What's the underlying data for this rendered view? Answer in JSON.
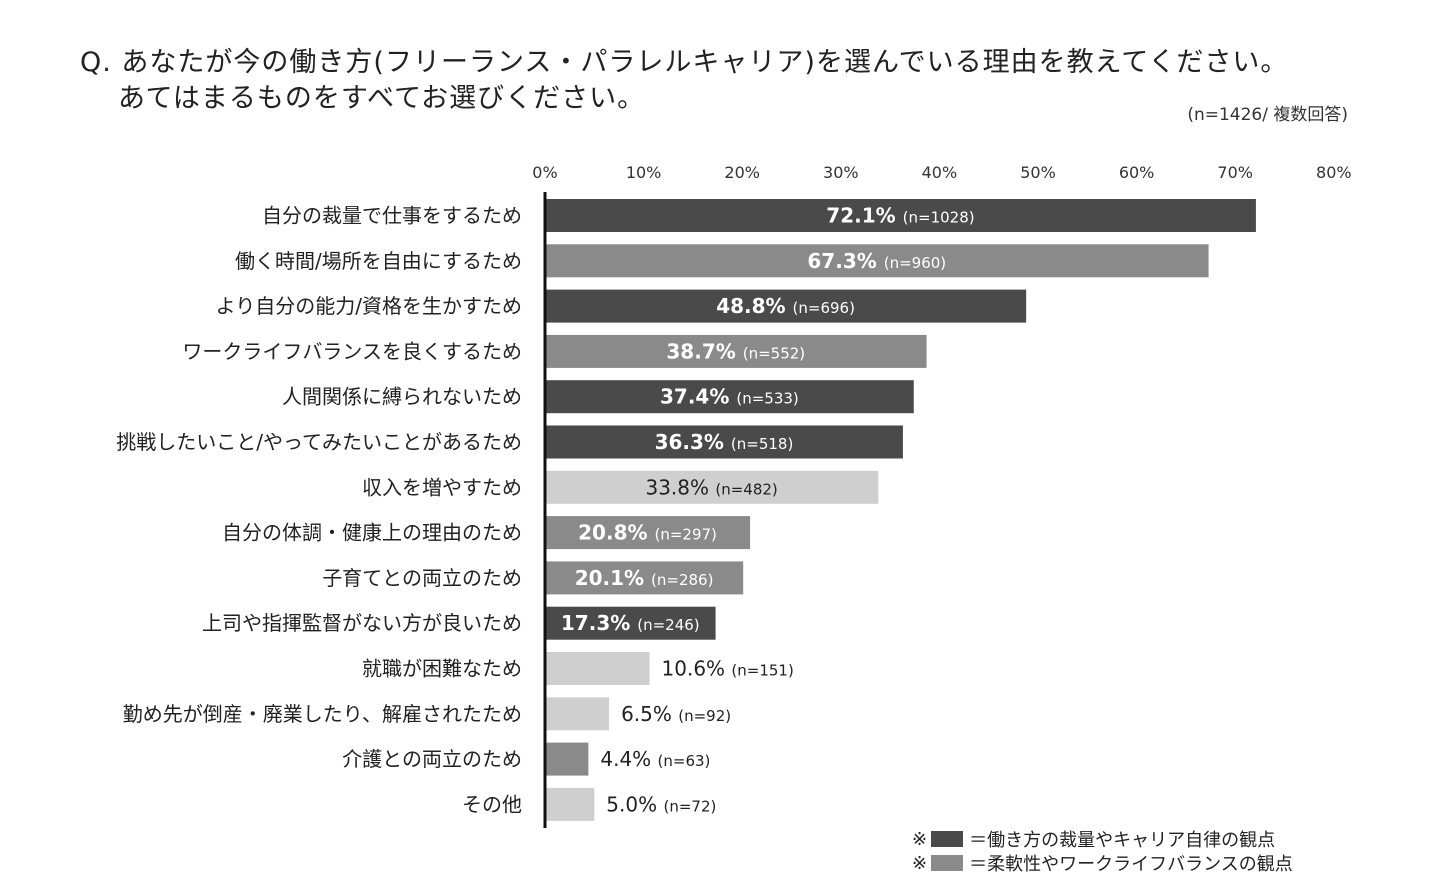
{
  "question": {
    "line1": "Q. あなたが今の働き方(フリーランス・パラレルキャリア)を選んでいる理由を教えてください。",
    "line2": "あてはまるものをすべてお選びください。"
  },
  "sample_note": "(n=1426/ 複数回答)",
  "colors": {
    "autonomy": "#4a4a4a",
    "flexibility": "#8a8a8a",
    "other": "#cfcfcf"
  },
  "chart_data": {
    "type": "bar",
    "orientation": "horizontal",
    "xlim": [
      0,
      80
    ],
    "ticks": [
      "0%",
      "10%",
      "20%",
      "30%",
      "40%",
      "50%",
      "60%",
      "70%",
      "80%"
    ],
    "categories": [
      "自分の裁量で仕事をするため",
      "働く時間/場所を自由にするため",
      "より自分の能力/資格を生かすため",
      "ワークライフバランスを良くするため",
      "人間関係に縛られないため",
      "挑戦したいこと/やってみたいことがあるため",
      "収入を増やすため",
      "自分の体調・健康上の理由のため",
      "子育てとの両立のため",
      "上司や指揮監督がない方が良いため",
      "就職が困難なため",
      "勤め先が倒産・廃業したり、解雇されたため",
      "介護との両立のため",
      "その他"
    ],
    "values": [
      72.1,
      67.3,
      48.8,
      38.7,
      37.4,
      36.3,
      33.8,
      20.8,
      20.1,
      17.3,
      10.6,
      6.5,
      4.4,
      5.0
    ],
    "value_labels": [
      "72.1%",
      "67.3%",
      "48.8%",
      "38.7%",
      "37.4%",
      "36.3%",
      "33.8%",
      "20.8%",
      "20.1%",
      "17.3%",
      "10.6%",
      "6.5%",
      "4.4%",
      "5.0%"
    ],
    "n_labels": [
      "(n=1028)",
      "(n=960)",
      "(n=696)",
      "(n=552)",
      "(n=533)",
      "(n=518)",
      "(n=482)",
      "(n=297)",
      "(n=286)",
      "(n=246)",
      "(n=151)",
      "(n=92)",
      "(n=63)",
      "(n=72)"
    ],
    "groups": [
      "autonomy",
      "flexibility",
      "autonomy",
      "flexibility",
      "autonomy",
      "autonomy",
      "other",
      "flexibility",
      "flexibility",
      "autonomy",
      "other",
      "other",
      "flexibility",
      "other"
    ],
    "legend": [
      {
        "mark": "※",
        "group": "autonomy",
        "label": "＝働き方の裁量やキャリア自律の観点"
      },
      {
        "mark": "※",
        "group": "flexibility",
        "label": "＝柔軟性やワークライフバランスの観点"
      }
    ]
  }
}
